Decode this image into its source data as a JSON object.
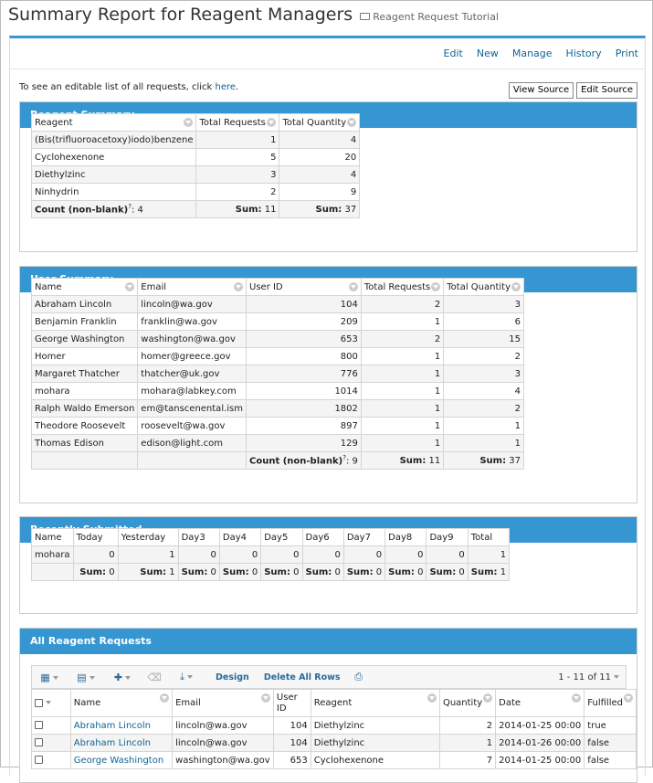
{
  "header": {
    "title": "Summary Report for Reagent Managers",
    "folder": "Reagent Request Tutorial"
  },
  "menu": [
    "Edit",
    "New",
    "Manage",
    "History",
    "Print"
  ],
  "intro": {
    "text": "To see an editable list of all requests, click ",
    "link": "here",
    "end": "."
  },
  "buttons": {
    "view_source": "View Source",
    "edit_source": "Edit Source"
  },
  "reagent_summary": {
    "title": "Reagent Summary",
    "columns": [
      "Reagent",
      "Total Requests",
      "Total Quantity"
    ],
    "rows": [
      [
        "(Bis(trifluoroacetoxy)iodo)benzene",
        "1",
        "4"
      ],
      [
        "Cyclohexenone",
        "5",
        "20"
      ],
      [
        "Diethylzinc",
        "3",
        "4"
      ],
      [
        "Ninhydrin",
        "2",
        "9"
      ]
    ],
    "footer": {
      "count_label": "Count (non-blank)",
      "count_value": "4",
      "sum_label": "Sum:",
      "sum_requests": "11",
      "sum_quantity": "37"
    }
  },
  "user_summary": {
    "title": "User Summary",
    "columns": [
      "Name",
      "Email",
      "User ID",
      "Total Requests",
      "Total Quantity"
    ],
    "rows": [
      [
        "Abraham Lincoln",
        "lincoln@wa.gov",
        "104",
        "2",
        "3"
      ],
      [
        "Benjamin Franklin",
        "franklin@wa.gov",
        "209",
        "1",
        "6"
      ],
      [
        "George Washington",
        "washington@wa.gov",
        "653",
        "2",
        "15"
      ],
      [
        "Homer",
        "homer@greece.gov",
        "800",
        "1",
        "2"
      ],
      [
        "Margaret Thatcher",
        "thatcher@uk.gov",
        "776",
        "1",
        "3"
      ],
      [
        "mohara",
        "mohara@labkey.com",
        "1014",
        "1",
        "4"
      ],
      [
        "Ralph Waldo Emerson",
        "em@tanscenental.ism",
        "1802",
        "1",
        "2"
      ],
      [
        "Theodore Roosevelt",
        "roosevelt@wa.gov",
        "897",
        "1",
        "1"
      ],
      [
        "Thomas Edison",
        "edison@light.com",
        "129",
        "1",
        "1"
      ]
    ],
    "footer": {
      "count_label": "Count (non-blank)",
      "count_value": "9",
      "sum_label": "Sum:",
      "sum_requests": "11",
      "sum_quantity": "37"
    }
  },
  "recent": {
    "title": "Recently Submitted",
    "columns": [
      "Name",
      "Today",
      "Yesterday",
      "Day3",
      "Day4",
      "Day5",
      "Day6",
      "Day7",
      "Day8",
      "Day9",
      "Total"
    ],
    "row": [
      "mohara",
      "0",
      "1",
      "0",
      "0",
      "0",
      "0",
      "0",
      "0",
      "0",
      "1"
    ],
    "sums": [
      "0",
      "1",
      "0",
      "0",
      "0",
      "0",
      "0",
      "0",
      "0",
      "1"
    ],
    "sum_label": "Sum:"
  },
  "all_requests": {
    "title": "All Reagent Requests",
    "toolbar": {
      "design": "Design",
      "delete_all": "Delete All Rows",
      "paging": "1 - 11 of 11"
    },
    "columns": [
      "Name",
      "Email",
      "User ID",
      "Reagent",
      "Quantity",
      "Date",
      "Fulfilled"
    ],
    "rows": [
      [
        "Abraham Lincoln",
        "lincoln@wa.gov",
        "104",
        "Diethylzinc",
        "2",
        "2014-01-25 00:00",
        "true"
      ],
      [
        "Abraham Lincoln",
        "lincoln@wa.gov",
        "104",
        "Diethylzinc",
        "1",
        "2014-01-26 00:00",
        "false"
      ],
      [
        "George Washington",
        "washington@wa.gov",
        "653",
        "Cyclohexenone",
        "7",
        "2014-01-25 00:00",
        "false"
      ]
    ]
  },
  "icons": {
    "grid": "grid-view-icon",
    "chart": "chart-icon",
    "insert": "insert-plus-icon",
    "delete": "trash-icon",
    "export": "export-icon",
    "print": "print-icon",
    "folder": "folder-icon"
  },
  "colors": {
    "panel_header": "#3596d1",
    "link": "#126495"
  }
}
